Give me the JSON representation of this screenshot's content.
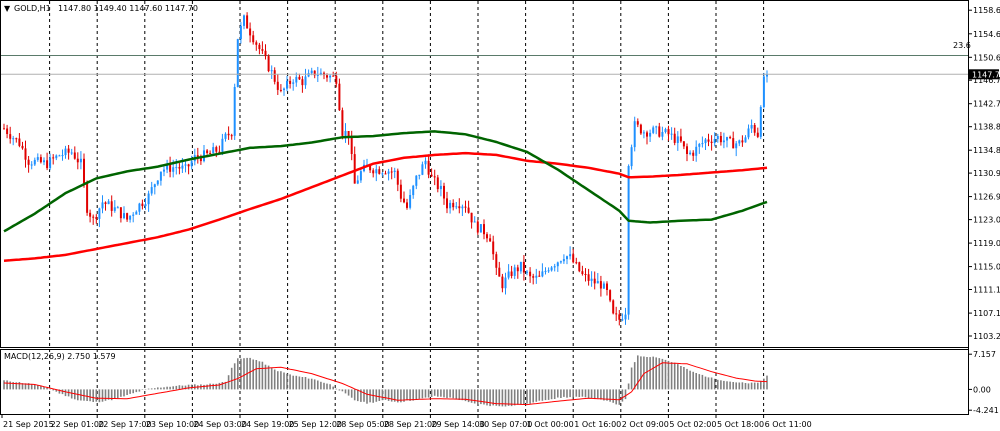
{
  "header": {
    "symbol_text": "GOLD,H1",
    "ohlc_text": "1147.80 1149.40 1147.60 1147.70"
  },
  "macd_label": "MACD(12,26,9) 2.750 1.579",
  "fib_label": "23.6",
  "current_price_label": "1147.70",
  "colors": {
    "bull": "#1e90ff",
    "bear": "#e00000",
    "ma_slow": "#ff0000",
    "ma_fast": "#006400",
    "macd_hist": "#808080",
    "macd_signal": "#ff0000",
    "grid": "#000000"
  },
  "chart_data": [
    {
      "type": "candlestick",
      "title": "",
      "ylim": [
        1101.5,
        1160.0
      ],
      "y_ticks": [
        "1158.60",
        "1154.60",
        "1150.60",
        "1146.70",
        "1142.70",
        "1138.80",
        "1134.80",
        "1130.90",
        "1126.90",
        "1123.00",
        "1119.00",
        "1115.00",
        "1111.10",
        "1107.10",
        "1103.20"
      ],
      "x_tick_labels": [
        "21 Sep 2015",
        "22 Sep 01:00",
        "22 Sep 17:00",
        "23 Sep 10:00",
        "24 Sep 03:00",
        "24 Sep 19:00",
        "25 Sep 12:00",
        "28 Sep 05:00",
        "28 Sep 21:00",
        "29 Sep 14:00",
        "30 Sep 07:00",
        "1 Oct 00:00",
        "1 Oct 16:00",
        "2 Oct 09:00",
        "5 Oct 02:00",
        "5 Oct 18:00",
        "6 Oct 11:00"
      ],
      "anchors": [
        [
          0,
          1138.5
        ],
        [
          5,
          1136
        ],
        [
          8,
          1133
        ],
        [
          14,
          1132.5
        ],
        [
          18,
          1134
        ],
        [
          22,
          1134.5
        ],
        [
          25,
          1132.5
        ],
        [
          27,
          1125
        ],
        [
          29,
          1123
        ],
        [
          32,
          1126
        ],
        [
          37,
          1124.5
        ],
        [
          40,
          1123
        ],
        [
          43,
          1125
        ],
        [
          47,
          1127
        ],
        [
          51,
          1131.5
        ],
        [
          56,
          1132
        ],
        [
          59,
          1131.5
        ],
        [
          62,
          1133.5
        ],
        [
          66,
          1134
        ],
        [
          70,
          1135
        ],
        [
          72,
          1137
        ],
        [
          74,
          1138
        ],
        [
          76,
          1154
        ],
        [
          78,
          1157
        ],
        [
          80,
          1155
        ],
        [
          84,
          1151
        ],
        [
          87,
          1148
        ],
        [
          90,
          1144.5
        ],
        [
          94,
          1147
        ],
        [
          97,
          1146.5
        ],
        [
          101,
          1148
        ],
        [
          105,
          1147.5
        ],
        [
          108,
          1147
        ],
        [
          110,
          1138
        ],
        [
          112,
          1137.5
        ],
        [
          114,
          1129
        ],
        [
          116,
          1131
        ],
        [
          118,
          1132
        ],
        [
          121,
          1131.5
        ],
        [
          124,
          1131.5
        ],
        [
          127,
          1131
        ],
        [
          129,
          1127
        ],
        [
          131,
          1125
        ],
        [
          134,
          1130
        ],
        [
          137,
          1133
        ],
        [
          139,
          1130
        ],
        [
          142,
          1128
        ],
        [
          144,
          1125.5
        ],
        [
          147,
          1126
        ],
        [
          150,
          1125.5
        ],
        [
          153,
          1122
        ],
        [
          156,
          1121
        ],
        [
          158,
          1120
        ],
        [
          160,
          1114
        ],
        [
          162,
          1112
        ],
        [
          165,
          1114
        ],
        [
          168,
          1115
        ],
        [
          171,
          1113
        ],
        [
          174,
          1113
        ],
        [
          177,
          1115
        ],
        [
          180,
          1116
        ],
        [
          182,
          1117
        ],
        [
          184,
          1116.5
        ],
        [
          186,
          1115
        ],
        [
          188,
          1113.5
        ],
        [
          191,
          1112.5
        ],
        [
          194,
          1112
        ],
        [
          196,
          1110.5
        ],
        [
          198,
          1106.5
        ],
        [
          200,
          1106
        ],
        [
          202,
          1107.5
        ],
        [
          203,
          1133
        ],
        [
          205,
          1139
        ],
        [
          208,
          1138
        ],
        [
          212,
          1138
        ],
        [
          216,
          1137.5
        ],
        [
          220,
          1136
        ],
        [
          222,
          1134
        ],
        [
          224,
          1134.5
        ],
        [
          228,
          1136.5
        ],
        [
          232,
          1137
        ],
        [
          236,
          1136
        ],
        [
          239,
          1136
        ],
        [
          241,
          1137
        ],
        [
          243,
          1139
        ],
        [
          245,
          1137.5
        ],
        [
          246,
          1143
        ],
        [
          247,
          1146.5
        ],
        [
          248,
          1147.7
        ]
      ],
      "fib_level": 1150.9,
      "current_price": 1147.7,
      "ma_fast": [
        [
          0,
          1121
        ],
        [
          10,
          1124
        ],
        [
          20,
          1127.5
        ],
        [
          30,
          1130
        ],
        [
          40,
          1131.2
        ],
        [
          50,
          1132
        ],
        [
          60,
          1133.2
        ],
        [
          70,
          1134.2
        ],
        [
          80,
          1135.2
        ],
        [
          90,
          1135.5
        ],
        [
          100,
          1136.1
        ],
        [
          110,
          1137
        ],
        [
          120,
          1137.2
        ],
        [
          130,
          1137.7
        ],
        [
          140,
          1138
        ],
        [
          150,
          1137.5
        ],
        [
          160,
          1136.2
        ],
        [
          170,
          1134.5
        ],
        [
          180,
          1131.5
        ],
        [
          190,
          1128
        ],
        [
          200,
          1124.5
        ],
        [
          203,
          1122.8
        ],
        [
          210,
          1122.5
        ],
        [
          220,
          1122.8
        ],
        [
          230,
          1123
        ],
        [
          240,
          1124.5
        ],
        [
          248,
          1126
        ]
      ],
      "ma_slow": [
        [
          0,
          1116
        ],
        [
          10,
          1116.4
        ],
        [
          20,
          1117
        ],
        [
          30,
          1118
        ],
        [
          40,
          1119
        ],
        [
          50,
          1120
        ],
        [
          60,
          1121.3
        ],
        [
          70,
          1123
        ],
        [
          80,
          1124.8
        ],
        [
          90,
          1126.5
        ],
        [
          100,
          1128.5
        ],
        [
          110,
          1130.5
        ],
        [
          120,
          1132.5
        ],
        [
          130,
          1133.5
        ],
        [
          140,
          1134
        ],
        [
          150,
          1134.3
        ],
        [
          160,
          1134
        ],
        [
          170,
          1133
        ],
        [
          180,
          1132.5
        ],
        [
          190,
          1131.8
        ],
        [
          200,
          1130.8
        ],
        [
          203,
          1130.2
        ],
        [
          210,
          1130.3
        ],
        [
          220,
          1130.6
        ],
        [
          230,
          1131
        ],
        [
          240,
          1131.4
        ],
        [
          248,
          1131.8
        ]
      ],
      "candle_count": 249
    },
    {
      "type": "histogram",
      "title": "MACD(12,26,9)",
      "values_text": "2.750 1.579",
      "ylim": [
        -4.6,
        7.6
      ],
      "y_ticks": [
        "7.157",
        "0.00",
        "-4.241"
      ],
      "hist_anchors": [
        [
          0,
          1.8
        ],
        [
          8,
          1.2
        ],
        [
          14,
          0.4
        ],
        [
          18,
          -0.8
        ],
        [
          24,
          -2.2
        ],
        [
          30,
          -2.6
        ],
        [
          36,
          -2.0
        ],
        [
          40,
          -1.2
        ],
        [
          46,
          0
        ],
        [
          52,
          0.5
        ],
        [
          60,
          0.9
        ],
        [
          66,
          1.0
        ],
        [
          72,
          1.5
        ],
        [
          74,
          4.5
        ],
        [
          76,
          6.2
        ],
        [
          80,
          6.4
        ],
        [
          84,
          5.5
        ],
        [
          88,
          4.0
        ],
        [
          94,
          2.8
        ],
        [
          100,
          2.2
        ],
        [
          106,
          1.0
        ],
        [
          110,
          -0.5
        ],
        [
          114,
          -2.2
        ],
        [
          118,
          -2.8
        ],
        [
          124,
          -2.2
        ],
        [
          128,
          -2.6
        ],
        [
          134,
          -2.1
        ],
        [
          140,
          -1.4
        ],
        [
          146,
          -1.8
        ],
        [
          152,
          -2.8
        ],
        [
          158,
          -3.3
        ],
        [
          164,
          -3.4
        ],
        [
          170,
          -3.0
        ],
        [
          176,
          -2.1
        ],
        [
          182,
          -1.6
        ],
        [
          188,
          -1.6
        ],
        [
          194,
          -2.0
        ],
        [
          200,
          -3.2
        ],
        [
          202,
          -2.0
        ],
        [
          204,
          4.5
        ],
        [
          206,
          6.8
        ],
        [
          212,
          6.6
        ],
        [
          218,
          5.4
        ],
        [
          224,
          3.5
        ],
        [
          230,
          2.3
        ],
        [
          236,
          1.6
        ],
        [
          242,
          1.2
        ],
        [
          246,
          1.5
        ],
        [
          248,
          2.75
        ]
      ],
      "signal_anchors": [
        [
          0,
          1.3
        ],
        [
          10,
          1.0
        ],
        [
          20,
          -0.5
        ],
        [
          30,
          -1.8
        ],
        [
          40,
          -1.9
        ],
        [
          50,
          -0.8
        ],
        [
          60,
          0.3
        ],
        [
          70,
          0.9
        ],
        [
          76,
          2.2
        ],
        [
          82,
          4.2
        ],
        [
          90,
          4.5
        ],
        [
          100,
          3.2
        ],
        [
          110,
          1.2
        ],
        [
          118,
          -1.0
        ],
        [
          128,
          -2.2
        ],
        [
          140,
          -1.9
        ],
        [
          150,
          -2.0
        ],
        [
          160,
          -2.9
        ],
        [
          170,
          -3.1
        ],
        [
          180,
          -2.4
        ],
        [
          190,
          -1.8
        ],
        [
          200,
          -2.1
        ],
        [
          204,
          -0.5
        ],
        [
          208,
          3.2
        ],
        [
          214,
          5.4
        ],
        [
          222,
          5.2
        ],
        [
          230,
          3.6
        ],
        [
          238,
          2.3
        ],
        [
          244,
          1.7
        ],
        [
          248,
          1.579
        ]
      ]
    }
  ]
}
